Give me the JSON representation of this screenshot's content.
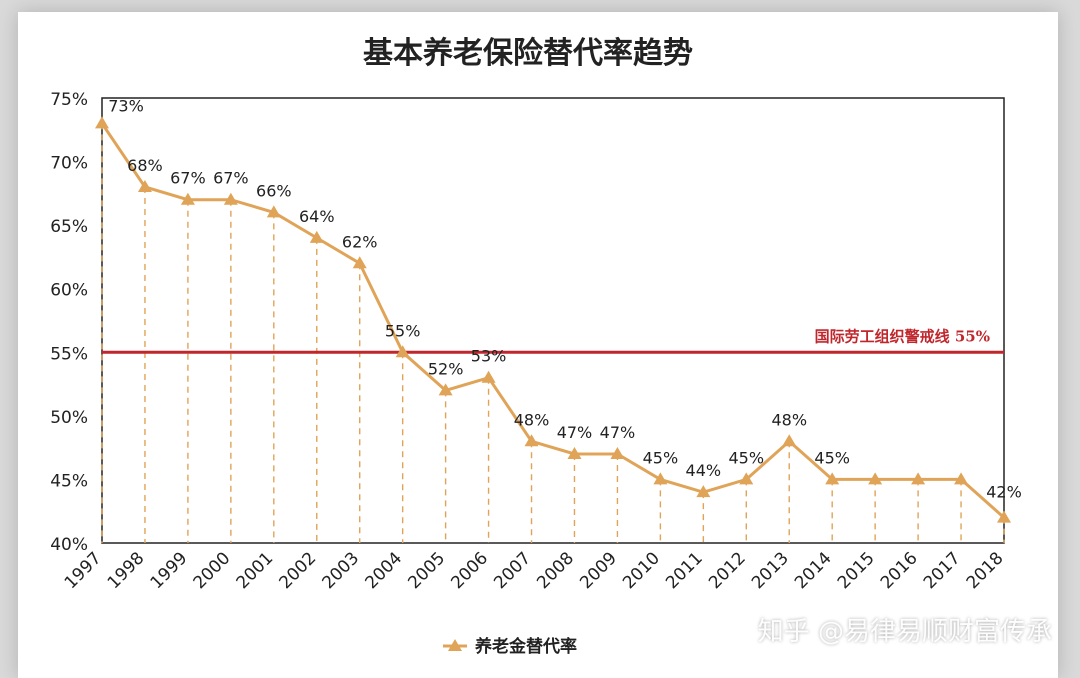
{
  "chart_data": {
    "type": "line",
    "title": "基本养老保险替代率趋势",
    "categories": [
      "1997",
      "1998",
      "1999",
      "2000",
      "2001",
      "2002",
      "2003",
      "2004",
      "2005",
      "2006",
      "2007",
      "2008",
      "2009",
      "2010",
      "2011",
      "2012",
      "2013",
      "2014",
      "2015",
      "2016",
      "2017",
      "2018"
    ],
    "series": [
      {
        "name": "养老金替代率",
        "values": [
          73,
          68,
          67,
          67,
          66,
          64,
          62,
          55,
          52,
          53,
          48,
          47,
          47,
          45,
          44,
          45,
          48,
          45,
          45,
          45,
          45,
          42
        ],
        "color": "#e0a458"
      }
    ],
    "data_labels": [
      "73%",
      "68%",
      "67%",
      "67%",
      "66%",
      "64%",
      "62%",
      "55%",
      "52%",
      "53%",
      "48%",
      "47%",
      "47%",
      "45%",
      "44%",
      "45%",
      "48%",
      "45%",
      "",
      "",
      "",
      "42%"
    ],
    "y_ticks": [
      75,
      70,
      65,
      60,
      55,
      50,
      45,
      40
    ],
    "y_tick_labels": [
      "75%",
      "70%",
      "65%",
      "60%",
      "55%",
      "50%",
      "45%",
      "40%"
    ],
    "ylim": [
      40,
      75
    ],
    "reference_line": {
      "value": 55,
      "label": "国际劳工组织警戒线  55%",
      "color": "#c0272d"
    },
    "legend": {
      "position": "bottom-center",
      "label": "养老金替代率"
    }
  },
  "watermark": "知乎 @易律易顺财富传承"
}
